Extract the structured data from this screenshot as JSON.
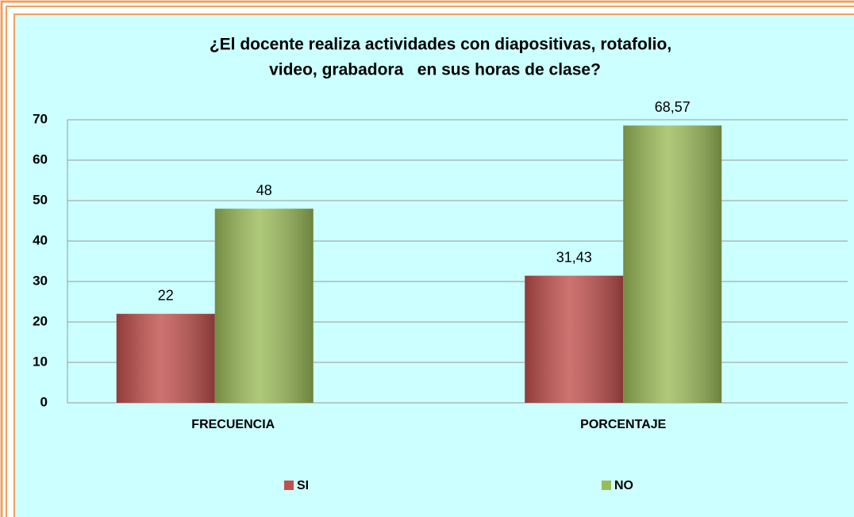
{
  "chart_data": {
    "type": "bar",
    "title": [
      "¿El docente realiza actividades con diapositivas, rotafolio,",
      "video, grabadora   en sus horas de clase?"
    ],
    "categories": [
      "FRECUENCIA",
      "PORCENTAJE"
    ],
    "series": [
      {
        "name": "SI",
        "color": "#c0504d",
        "values": [
          22,
          31.43
        ],
        "value_labels": [
          "22",
          "31,43"
        ]
      },
      {
        "name": "NO",
        "color": "#9bbb59",
        "values": [
          48,
          68.57
        ],
        "value_labels": [
          "48",
          "68,57"
        ]
      }
    ],
    "ylim": [
      0,
      70
    ],
    "yticks": [
      0,
      10,
      20,
      30,
      40,
      50,
      60,
      70
    ],
    "grid": true,
    "legend": "bottom"
  }
}
